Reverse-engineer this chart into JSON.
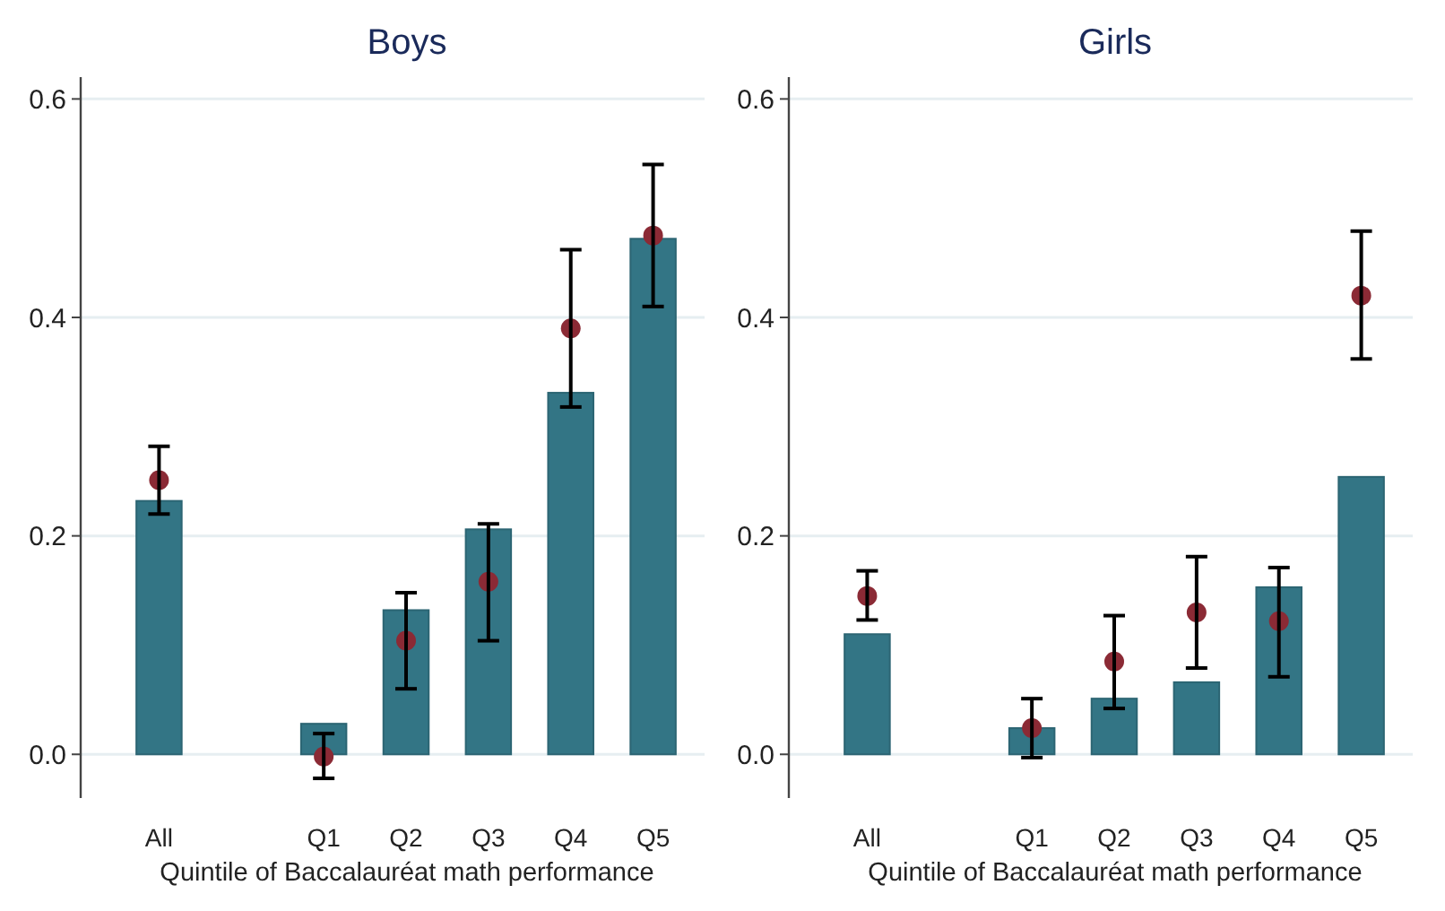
{
  "chart_data": [
    {
      "type": "bar",
      "title": "Boys",
      "xlabel": "Quintile of Baccalauréat math performance",
      "categories": [
        "All",
        null,
        "Q1",
        "Q2",
        "Q3",
        "Q4",
        "Q5"
      ],
      "ylim": [
        -0.04,
        0.62
      ],
      "yticks": [
        {
          "value": 0,
          "label": "0.0"
        },
        0.2,
        0.4,
        0.6
      ],
      "grid": "y",
      "marker": "circle",
      "series": [
        {
          "color": "#337585",
          "values": [
            0.232,
            null,
            0.028,
            0.132,
            0.206,
            0.331,
            0.472
          ]
        },
        {
          "type": "scatter",
          "color": "#8b2a35",
          "x": [
            "All",
            "Q1",
            "Q2",
            "Q3",
            "Q4",
            "Q5"
          ],
          "values": [
            0.251,
            -0.002,
            0.104,
            0.158,
            0.39,
            0.475
          ],
          "errors": [
            [
              0.22,
              0.282
            ],
            [
              -0.022,
              0.019
            ],
            [
              0.06,
              0.148
            ],
            [
              0.104,
              0.211
            ],
            [
              0.318,
              0.462
            ],
            [
              0.41,
              0.54
            ]
          ]
        }
      ]
    },
    {
      "type": "bar",
      "title": "Girls",
      "xlabel": "Quintile of Baccalauréat math performance",
      "categories": [
        "All",
        null,
        "Q1",
        "Q2",
        "Q3",
        "Q4",
        "Q5"
      ],
      "ylim": [
        -0.04,
        0.62
      ],
      "yticks": [
        {
          "value": 0,
          "label": "0.0"
        },
        0.2,
        0.4,
        0.6
      ],
      "grid": "y",
      "marker": "circle",
      "series": [
        {
          "color": "#337585",
          "values": [
            0.11,
            null,
            0.024,
            0.051,
            0.066,
            0.153,
            0.254
          ]
        },
        {
          "type": "scatter",
          "color": "#8b2a35",
          "x": [
            "All",
            "Q1",
            "Q2",
            "Q3",
            "Q4",
            "Q5"
          ],
          "values": [
            0.145,
            0.024,
            0.085,
            0.13,
            0.122,
            0.42
          ],
          "errors": [
            [
              0.123,
              0.168
            ],
            [
              -0.003,
              0.051
            ],
            [
              0.042,
              0.127
            ],
            [
              0.079,
              0.181
            ],
            [
              0.071,
              0.171
            ],
            [
              0.362,
              0.479
            ]
          ]
        }
      ]
    }
  ]
}
